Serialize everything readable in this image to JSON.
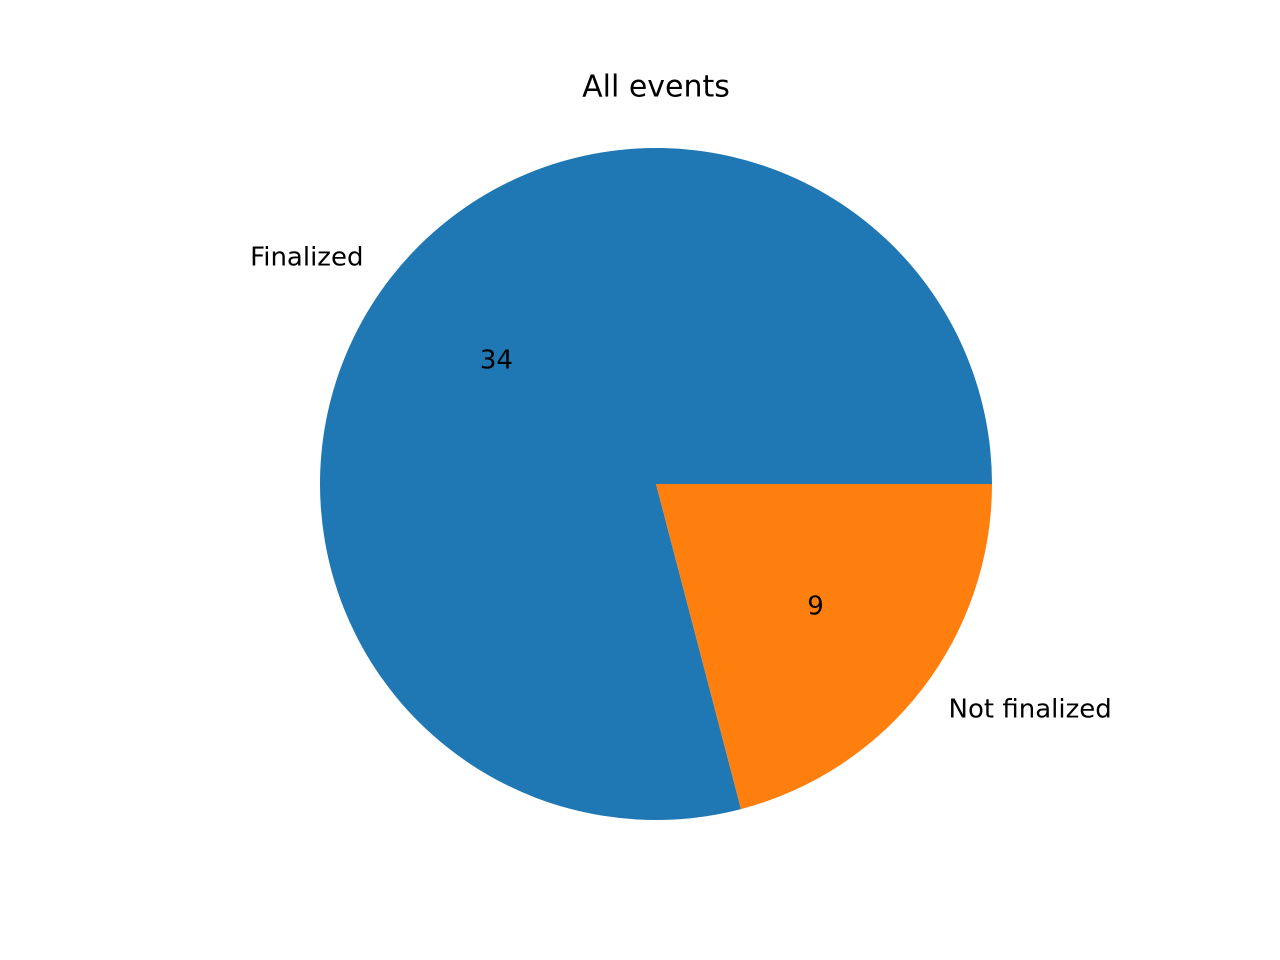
{
  "chart_data": {
    "type": "pie",
    "title": "All events",
    "start_angle_deg": 0,
    "direction": "counterclockwise",
    "slices": [
      {
        "label": "Finalized",
        "value": 34,
        "value_label": "34",
        "color": "#1f77b4"
      },
      {
        "label": "Not finalized",
        "value": 9,
        "value_label": "9",
        "color": "#ff7f0e"
      }
    ]
  }
}
